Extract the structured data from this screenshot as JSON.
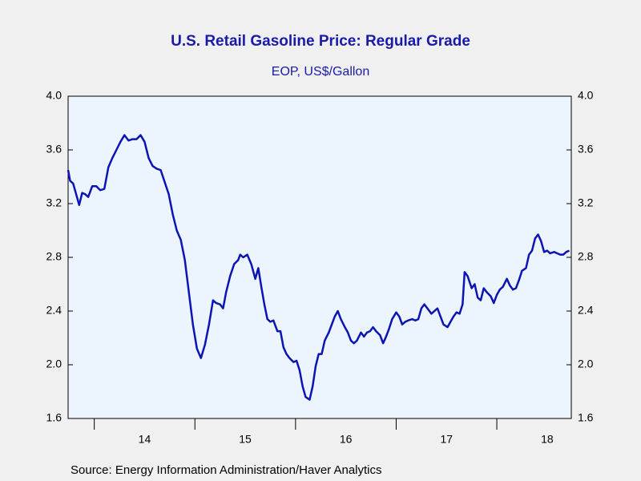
{
  "chart_data": {
    "type": "line",
    "title": "U.S. Retail Gasoline Price: Regular Grade",
    "subtitle": "EOP, US$/Gallon",
    "source": "Source:  Energy Information Administration/Haver Analytics",
    "x": [
      2013.74,
      2013.76,
      2013.79,
      2013.82,
      2013.85,
      2013.88,
      2013.91,
      2013.94,
      2013.98,
      2014.02,
      2014.06,
      2014.1,
      2014.14,
      2014.18,
      2014.22,
      2014.26,
      2014.3,
      2014.34,
      2014.38,
      2014.42,
      2014.46,
      2014.5,
      2014.54,
      2014.58,
      2014.62,
      2014.66,
      2014.7,
      2014.74,
      2014.78,
      2014.82,
      2014.86,
      2014.9,
      2014.94,
      2014.98,
      2015.02,
      2015.06,
      2015.1,
      2015.14,
      2015.16,
      2015.18,
      2015.21,
      2015.25,
      2015.28,
      2015.31,
      2015.35,
      2015.39,
      2015.43,
      2015.45,
      2015.48,
      2015.52,
      2015.56,
      2015.6,
      2015.63,
      2015.66,
      2015.69,
      2015.72,
      2015.75,
      2015.78,
      2015.82,
      2015.85,
      2015.88,
      2015.91,
      2015.94,
      2015.98,
      2016.01,
      2016.04,
      2016.07,
      2016.1,
      2016.14,
      2016.17,
      2016.2,
      2016.23,
      2016.26,
      2016.29,
      2016.33,
      2016.36,
      2016.39,
      2016.42,
      2016.45,
      2016.49,
      2016.52,
      2016.55,
      2016.58,
      2016.61,
      2016.65,
      2016.68,
      2016.71,
      2016.74,
      2016.77,
      2016.8,
      2016.84,
      2016.87,
      2016.9,
      2016.93,
      2016.96,
      2017.0,
      2017.03,
      2017.06,
      2017.09,
      2017.12,
      2017.16,
      2017.19,
      2017.22,
      2017.25,
      2017.28,
      2017.31,
      2017.35,
      2017.38,
      2017.41,
      2017.44,
      2017.47,
      2017.51,
      2017.54,
      2017.57,
      2017.6,
      2017.63,
      2017.66,
      2017.68,
      2017.71,
      2017.75,
      2017.78,
      2017.81,
      2017.84,
      2017.87,
      2017.9,
      2017.94,
      2017.97,
      2018.0,
      2018.03,
      2018.06,
      2018.1,
      2018.13,
      2018.16,
      2018.19,
      2018.22,
      2018.25,
      2018.29,
      2018.32,
      2018.35,
      2018.38,
      2018.41,
      2018.44,
      2018.47,
      2018.5,
      2018.53,
      2018.57,
      2018.6,
      2018.63,
      2018.66,
      2018.69,
      2018.72
    ],
    "series": [
      {
        "name": "Regular Grade",
        "color": "#0c14b4",
        "values": [
          3.45,
          3.37,
          3.35,
          3.27,
          3.19,
          3.28,
          3.27,
          3.25,
          3.33,
          3.33,
          3.3,
          3.31,
          3.47,
          3.54,
          3.6,
          3.66,
          3.71,
          3.67,
          3.68,
          3.68,
          3.71,
          3.66,
          3.54,
          3.48,
          3.46,
          3.45,
          3.36,
          3.27,
          3.12,
          3.0,
          2.93,
          2.78,
          2.54,
          2.3,
          2.12,
          2.05,
          2.15,
          2.3,
          2.39,
          2.48,
          2.46,
          2.45,
          2.42,
          2.54,
          2.66,
          2.75,
          2.78,
          2.82,
          2.8,
          2.82,
          2.75,
          2.64,
          2.72,
          2.58,
          2.45,
          2.34,
          2.32,
          2.33,
          2.25,
          2.25,
          2.13,
          2.08,
          2.05,
          2.02,
          2.03,
          1.96,
          1.84,
          1.76,
          1.74,
          1.84,
          1.99,
          2.08,
          2.08,
          2.18,
          2.24,
          2.3,
          2.36,
          2.4,
          2.34,
          2.28,
          2.24,
          2.18,
          2.16,
          2.18,
          2.24,
          2.21,
          2.24,
          2.25,
          2.28,
          2.25,
          2.22,
          2.16,
          2.21,
          2.27,
          2.34,
          2.39,
          2.36,
          2.3,
          2.32,
          2.33,
          2.34,
          2.33,
          2.34,
          2.42,
          2.45,
          2.42,
          2.38,
          2.4,
          2.42,
          2.36,
          2.3,
          2.28,
          2.32,
          2.36,
          2.39,
          2.38,
          2.45,
          2.69,
          2.66,
          2.57,
          2.6,
          2.5,
          2.48,
          2.57,
          2.54,
          2.51,
          2.46,
          2.52,
          2.56,
          2.58,
          2.64,
          2.59,
          2.56,
          2.57,
          2.63,
          2.7,
          2.72,
          2.82,
          2.85,
          2.94,
          2.97,
          2.92,
          2.84,
          2.85,
          2.83,
          2.84,
          2.83,
          2.82,
          2.82,
          2.84,
          2.85
        ]
      }
    ],
    "xlim": [
      2013.74,
      2018.74
    ],
    "xticks": [
      {
        "value": 2014,
        "label": "14"
      },
      {
        "value": 2015,
        "label": "15"
      },
      {
        "value": 2016,
        "label": "16"
      },
      {
        "value": 2017,
        "label": "17"
      },
      {
        "value": 2018,
        "label": "18"
      }
    ],
    "ylim": [
      1.6,
      4.0
    ],
    "yticks": [
      1.6,
      {
        "value": 2,
        "label": "2.0"
      },
      2.4,
      2.8,
      3.2,
      3.6,
      {
        "value": 4,
        "label": "4.0"
      }
    ],
    "grid": false
  }
}
